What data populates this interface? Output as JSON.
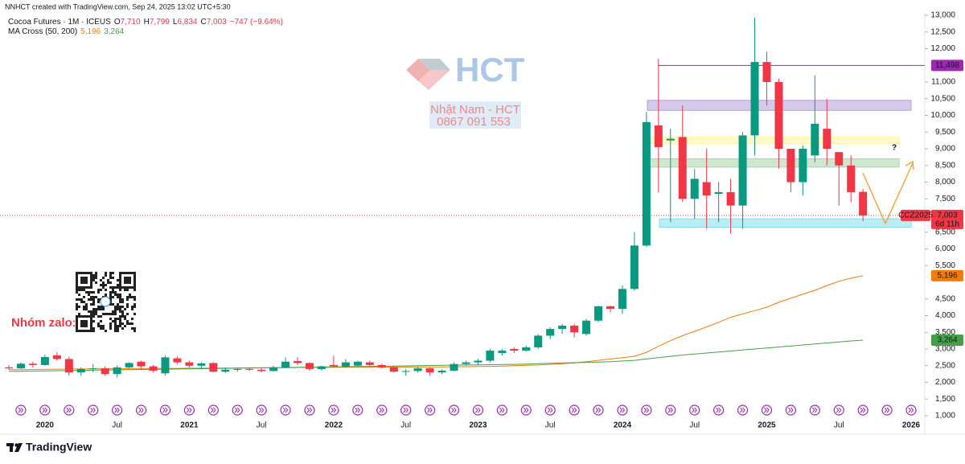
{
  "header": "NNHCT created with TradingView.com, Sep 24, 2025 13:02 UTC+5:30",
  "footer": "TradingView",
  "watermark": {
    "brand": "HCT",
    "name": "Nhật Nam - HCT",
    "phone": "0867 091 553"
  },
  "zalo": "Nhóm zalo:",
  "chart_data": {
    "type": "candlestick",
    "symbol_title": "Cocoa Futures · 1M · ICEUS",
    "legend_fields": [
      {
        "key": "O",
        "text": "7,710"
      },
      {
        "key": "H",
        "text": "7,799"
      },
      {
        "key": "L",
        "text": "6,834"
      },
      {
        "key": "C",
        "text": "7,003"
      }
    ],
    "change": "−747 (−9.64%)",
    "indicator": "MA Cross (50, 200)",
    "up_color": "#089981",
    "down_color": "#f23645",
    "categories": [
      null,
      null,
      null,
      "2020",
      null,
      null,
      null,
      null,
      null,
      "Jul",
      null,
      null,
      null,
      null,
      null,
      "2021",
      null,
      null,
      null,
      null,
      null,
      "Jul",
      null,
      null,
      null,
      null,
      null,
      "2022",
      null,
      null,
      null,
      null,
      null,
      "Jul",
      null,
      null,
      null,
      null,
      null,
      "2023",
      null,
      null,
      null,
      null,
      null,
      "Jul",
      null,
      null,
      null,
      null,
      null,
      "2024",
      null,
      null,
      null,
      null,
      null,
      "Jul",
      null,
      null,
      null,
      null,
      null,
      "2025",
      null,
      null,
      null,
      null,
      null,
      "Jul",
      null,
      null,
      null,
      null,
      null,
      "2026"
    ],
    "open": [
      2450,
      2420,
      2560,
      2520,
      2810,
      2700,
      2300,
      2400,
      2420,
      2250,
      2450,
      2620,
      2480,
      2270,
      2720,
      2600,
      2500,
      2580,
      2320,
      2380,
      2400,
      2380,
      2340,
      2450,
      2640,
      2580,
      2400,
      2520,
      2480,
      2500,
      2600,
      2520,
      2450,
      2320,
      2340,
      2420,
      2300,
      2350,
      2550,
      2600,
      2650,
      2880,
      3000,
      2950,
      3050,
      3400,
      3600,
      3700,
      3450,
      3850,
      4280,
      4200,
      4800,
      6100,
      9700,
      9250,
      9350,
      7500,
      8000,
      7650,
      7700,
      7300,
      9400,
      11600,
      11000,
      9000,
      8000,
      8800,
      9600,
      8900,
      8500,
      7710,
      null,
      null,
      null,
      null
    ],
    "high": [
      2520,
      2600,
      2620,
      2830,
      2900,
      2770,
      2450,
      2550,
      2480,
      2500,
      2600,
      2650,
      2520,
      2800,
      2780,
      2650,
      2600,
      2600,
      2450,
      2450,
      2450,
      2420,
      2500,
      2750,
      2760,
      2600,
      2500,
      2800,
      2700,
      2650,
      2650,
      2560,
      2480,
      2400,
      2470,
      2450,
      2390,
      2600,
      2650,
      2700,
      3000,
      3000,
      3050,
      3100,
      3450,
      3650,
      3750,
      3750,
      3900,
      4300,
      4300,
      4900,
      6500,
      10100,
      11700,
      9600,
      10300,
      8400,
      9000,
      8000,
      8100,
      9500,
      12930,
      11900,
      11100,
      9000,
      9100,
      11200,
      10500,
      8900,
      8800,
      7799,
      null,
      null,
      null,
      null
    ],
    "low": [
      2380,
      2400,
      2440,
      2500,
      2650,
      2200,
      2200,
      2300,
      2200,
      2150,
      2420,
      2400,
      2300,
      2200,
      2550,
      2450,
      2400,
      2300,
      2280,
      2320,
      2350,
      2300,
      2330,
      2420,
      2520,
      2350,
      2350,
      2450,
      2440,
      2450,
      2480,
      2420,
      2300,
      2200,
      2290,
      2200,
      2250,
      2330,
      2500,
      2520,
      2600,
      2800,
      2880,
      2920,
      3000,
      3300,
      3450,
      3350,
      3400,
      3800,
      4100,
      4050,
      4750,
      6050,
      7700,
      6800,
      7400,
      6900,
      6600,
      6800,
      6450,
      6600,
      8800,
      10300,
      8400,
      7700,
      7600,
      8600,
      8500,
      7300,
      7400,
      6834,
      null,
      null,
      null,
      null
    ],
    "close": [
      2420,
      2560,
      2520,
      2760,
      2700,
      2300,
      2400,
      2420,
      2250,
      2450,
      2580,
      2480,
      2350,
      2750,
      2600,
      2500,
      2570,
      2320,
      2380,
      2400,
      2380,
      2340,
      2450,
      2620,
      2580,
      2400,
      2480,
      2480,
      2600,
      2620,
      2520,
      2450,
      2320,
      2340,
      2420,
      2300,
      2350,
      2550,
      2600,
      2650,
      2950,
      2950,
      2950,
      3050,
      3400,
      3600,
      3700,
      3500,
      3850,
      4280,
      4200,
      4800,
      6100,
      9800,
      9050,
      9300,
      7500,
      8100,
      7600,
      7700,
      7300,
      9400,
      11600,
      11000,
      9000,
      8000,
      9000,
      9750,
      9000,
      8500,
      7700,
      7003,
      null,
      null,
      null,
      null
    ],
    "ma": [
      {
        "color": "#f57c00",
        "values": [
          2380,
          2380,
          2385,
          2390,
          2395,
          2400,
          2400,
          2405,
          2405,
          2410,
          2410,
          2415,
          2415,
          2420,
          2420,
          2425,
          2425,
          2430,
          2430,
          2430,
          2435,
          2435,
          2440,
          2440,
          2445,
          2445,
          2450,
          2450,
          2450,
          2455,
          2455,
          2455,
          2460,
          2460,
          2460,
          2465,
          2465,
          2470,
          2470,
          2475,
          2480,
          2490,
          2500,
          2510,
          2520,
          2540,
          2560,
          2580,
          2620,
          2660,
          2700,
          2740,
          2780,
          2900,
          3080,
          3250,
          3400,
          3530,
          3660,
          3800,
          3950,
          4050,
          4150,
          4250,
          4400,
          4520,
          4640,
          4760,
          4900,
          5030,
          5120,
          5196,
          null,
          null,
          null,
          null
        ],
        "value_labels": [
          null,
          null,
          null,
          null,
          null,
          null,
          null,
          null,
          null,
          null,
          null,
          null,
          null,
          null,
          null,
          null,
          null,
          null,
          null,
          null,
          null,
          null,
          null,
          null,
          null,
          null,
          null,
          null,
          null,
          null,
          null,
          null,
          null,
          null,
          null,
          null,
          null,
          null,
          null,
          null,
          null,
          null,
          null,
          null,
          null,
          null,
          null,
          null,
          null,
          null,
          null,
          null,
          null,
          null,
          null,
          null,
          null,
          null,
          null,
          null,
          null,
          null,
          null,
          null,
          null,
          null,
          null,
          null,
          null,
          null,
          null,
          "5,196",
          null,
          null,
          null,
          null
        ]
      },
      {
        "color": "#43a047",
        "values": [
          2330,
          2335,
          2340,
          2345,
          2350,
          2355,
          2360,
          2365,
          2370,
          2375,
          2380,
          2385,
          2390,
          2395,
          2400,
          2405,
          2410,
          2415,
          2420,
          2425,
          2430,
          2435,
          2440,
          2445,
          2450,
          2455,
          2460,
          2465,
          2470,
          2475,
          2480,
          2485,
          2490,
          2495,
          2500,
          2505,
          2510,
          2515,
          2520,
          2525,
          2530,
          2535,
          2540,
          2550,
          2560,
          2570,
          2580,
          2590,
          2600,
          2610,
          2620,
          2640,
          2660,
          2700,
          2740,
          2780,
          2820,
          2850,
          2880,
          2910,
          2940,
          2970,
          3000,
          3030,
          3060,
          3090,
          3120,
          3150,
          3180,
          3210,
          3240,
          3264,
          null,
          null,
          null,
          null
        ],
        "value_labels": [
          null,
          null,
          null,
          null,
          null,
          null,
          null,
          null,
          null,
          null,
          null,
          null,
          null,
          null,
          null,
          null,
          null,
          null,
          null,
          null,
          null,
          null,
          null,
          null,
          null,
          null,
          null,
          null,
          null,
          null,
          null,
          null,
          null,
          null,
          null,
          null,
          null,
          null,
          null,
          null,
          null,
          null,
          null,
          null,
          null,
          null,
          null,
          null,
          null,
          null,
          null,
          null,
          null,
          null,
          null,
          null,
          null,
          null,
          null,
          null,
          null,
          null,
          null,
          null,
          null,
          null,
          null,
          null,
          null,
          null,
          null,
          "3,264",
          null,
          null,
          null,
          null
        ]
      }
    ],
    "last_price": {
      "value": 7003,
      "label": "7,003",
      "symbol": "CCZ2025",
      "countdown": "6d 11h",
      "color": "#f23645"
    },
    "hline": {
      "value": 11498,
      "label": "11,498",
      "color": "#9c27b0"
    },
    "zones": [
      {
        "low": 10150,
        "high": 10450,
        "color": "#b39ddb"
      },
      {
        "low": 9150,
        "high": 9350,
        "color": "#fff59d"
      },
      {
        "low": 8450,
        "high": 8700,
        "color": "#a5d6a7"
      },
      {
        "low": 6650,
        "high": 6900,
        "color": "#80deea"
      }
    ],
    "annotation": "?",
    "ylim": [
      1000,
      13000
    ],
    "yticks": [
      {
        "value": 1000,
        "label": "1,000"
      },
      {
        "value": 1500,
        "label": "1,500"
      },
      {
        "value": 2000,
        "label": "2,000"
      },
      {
        "value": 2500,
        "label": "2,500"
      },
      {
        "value": 3000,
        "label": "3,000"
      },
      {
        "value": 3500,
        "label": "3,500"
      },
      {
        "value": 4000,
        "label": "4,000"
      },
      {
        "value": 4500,
        "label": "4,500"
      },
      {
        "value": 5500,
        "label": "5,500"
      },
      {
        "value": 6000,
        "label": "6,000"
      },
      {
        "value": 6500,
        "label": "6,500"
      },
      {
        "value": 7500,
        "label": "7,500"
      },
      {
        "value": 8000,
        "label": "8,000"
      },
      {
        "value": 8500,
        "label": "8,500"
      },
      {
        "value": 9000,
        "label": "9,000"
      },
      {
        "value": 9500,
        "label": "9,500"
      },
      {
        "value": 10000,
        "label": "10,000"
      },
      {
        "value": 10500,
        "label": "10,500"
      },
      {
        "value": 11000,
        "label": "11,000"
      },
      {
        "value": 12000,
        "label": "12,000"
      },
      {
        "value": 12500,
        "label": "12,500"
      },
      {
        "value": 13000,
        "label": "13,000"
      }
    ],
    "grid": false
  }
}
